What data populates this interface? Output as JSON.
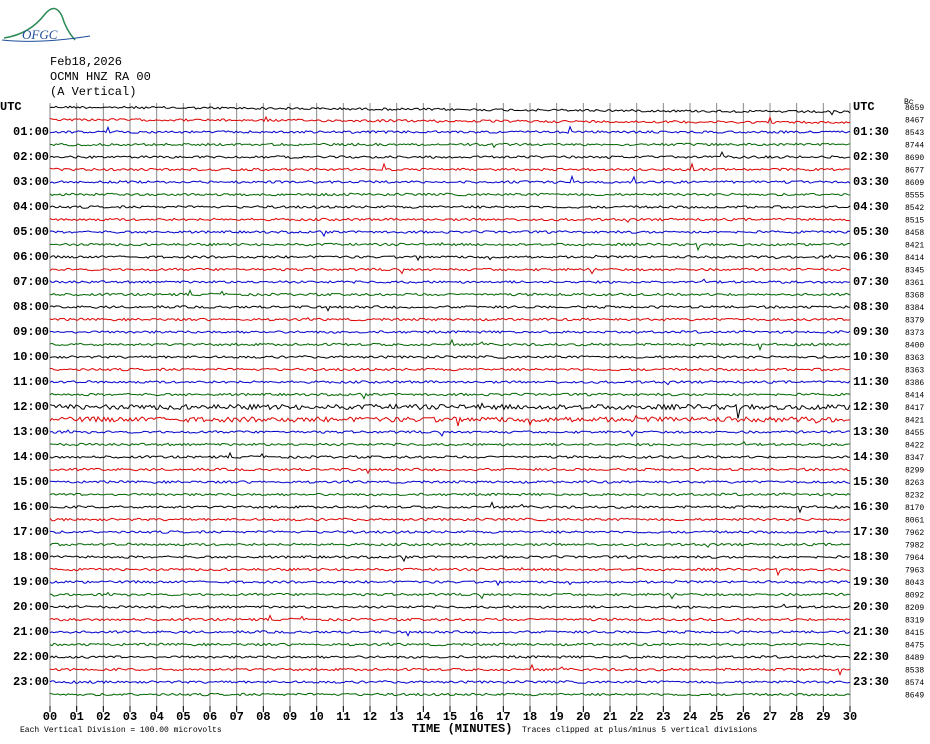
{
  "logo": "OFGC",
  "header": {
    "date": "Feb18,2026",
    "station": "OCMN HNZ RA 00",
    "component": "(A Vertical)",
    "corner": "Bc"
  },
  "left_labels": [
    "UTC",
    "01:00",
    "02:00",
    "03:00",
    "04:00",
    "05:00",
    "06:00",
    "07:00",
    "08:00",
    "09:00",
    "10:00",
    "11:00",
    "12:00",
    "13:00",
    "14:00",
    "15:00",
    "16:00",
    "17:00",
    "18:00",
    "19:00",
    "20:00",
    "21:00",
    "22:00",
    "23:00"
  ],
  "right_labels": [
    "UTC",
    "01:30",
    "02:30",
    "03:30",
    "04:30",
    "05:30",
    "06:30",
    "07:30",
    "08:30",
    "09:30",
    "10:30",
    "11:30",
    "12:30",
    "13:30",
    "14:30",
    "15:30",
    "16:30",
    "17:30",
    "18:30",
    "19:30",
    "20:30",
    "21:30",
    "22:30",
    "23:30"
  ],
  "counts": [
    "8659",
    "8467",
    "8543",
    "8744",
    "8690",
    "8677",
    "8609",
    "8555",
    "8542",
    "8515",
    "8458",
    "8421",
    "8414",
    "8345",
    "8361",
    "8368",
    "8384",
    "8379",
    "8373",
    "8400",
    "8363",
    "8363",
    "8386",
    "8414",
    "8417",
    "8421",
    "8455",
    "8422",
    "8347",
    "8299",
    "8263",
    "8232",
    "8170",
    "8061",
    "7962",
    "7982",
    "7964",
    "7963",
    "8043",
    "8092",
    "8209",
    "8319",
    "8415",
    "8475",
    "8489",
    "8538",
    "8574",
    "8649"
  ],
  "x_ticks": [
    "00",
    "01",
    "02",
    "03",
    "04",
    "05",
    "06",
    "07",
    "08",
    "09",
    "10",
    "11",
    "12",
    "13",
    "14",
    "15",
    "16",
    "17",
    "18",
    "19",
    "20",
    "21",
    "22",
    "23",
    "24",
    "25",
    "26",
    "27",
    "28",
    "29",
    "30"
  ],
  "x_label": "TIME (MINUTES)",
  "footer": {
    "scale": "Each Vertical Division =  100.00 microvolts",
    "clip": "Traces clipped at plus/minus 5 vertical divisions"
  }
}
